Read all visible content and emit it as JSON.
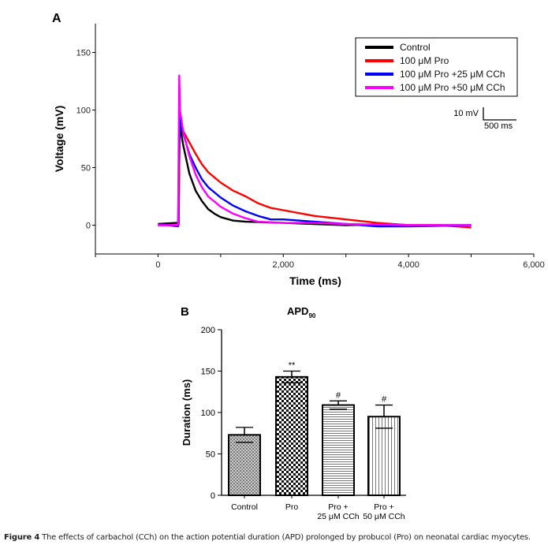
{
  "caption": {
    "label": "Figure 4",
    "text": "The effects of carbachol (CCh) on the action potential duration (APD) prolonged by probucol (Pro) on neonatal cardiac myocytes."
  },
  "chart_data": [
    {
      "panel": "A",
      "type": "line",
      "xlabel": "Time (ms)",
      "ylabel": "Voltage (mV)",
      "xlim": [
        -1000,
        6000
      ],
      "ylim": [
        -25,
        175
      ],
      "xticks": [
        0,
        2000,
        4000,
        6000
      ],
      "xtick_labels": [
        "0",
        "2,000",
        "4,000",
        "6,000"
      ],
      "yticks": [
        0,
        50,
        100,
        150
      ],
      "ytick_labels": [
        "0",
        "50",
        "100",
        "150"
      ],
      "grid": false,
      "legend": "top-right",
      "scale_bar": {
        "voltage_label": "10 mV",
        "time_label": "500 ms"
      },
      "series": [
        {
          "name": "Control",
          "color": "#000000",
          "points": [
            [
              0,
              1
            ],
            [
              300,
              2
            ],
            [
              330,
              2
            ],
            [
              345,
              88
            ],
            [
              400,
              70
            ],
            [
              500,
              45
            ],
            [
              600,
              30
            ],
            [
              700,
              21
            ],
            [
              800,
              14
            ],
            [
              900,
              10
            ],
            [
              1000,
              7
            ],
            [
              1200,
              4
            ],
            [
              1400,
              3
            ],
            [
              2000,
              2
            ],
            [
              2500,
              1
            ],
            [
              3000,
              0
            ],
            [
              3700,
              1
            ],
            [
              4000,
              0
            ],
            [
              5000,
              0
            ]
          ]
        },
        {
          "name": "100 μM Pro",
          "color": "#ff0000",
          "points": [
            [
              0,
              0
            ],
            [
              330,
              0
            ],
            [
              345,
              92
            ],
            [
              400,
              82
            ],
            [
              500,
              72
            ],
            [
              600,
              62
            ],
            [
              700,
              53
            ],
            [
              800,
              46
            ],
            [
              1000,
              37
            ],
            [
              1200,
              30
            ],
            [
              1400,
              25
            ],
            [
              1600,
              19
            ],
            [
              1800,
              15
            ],
            [
              2000,
              13
            ],
            [
              2500,
              8
            ],
            [
              3000,
              5
            ],
            [
              3500,
              2
            ],
            [
              4000,
              0
            ],
            [
              4500,
              0
            ],
            [
              5000,
              -2
            ]
          ]
        },
        {
          "name": "100 μM Pro +25 μM CCh",
          "color": "#0000ff",
          "points": [
            [
              0,
              1
            ],
            [
              320,
              -1
            ],
            [
              345,
              95
            ],
            [
              400,
              80
            ],
            [
              500,
              62
            ],
            [
              600,
              50
            ],
            [
              700,
              40
            ],
            [
              800,
              33
            ],
            [
              1000,
              24
            ],
            [
              1200,
              17
            ],
            [
              1400,
              12
            ],
            [
              1600,
              8
            ],
            [
              1800,
              5
            ],
            [
              2000,
              5
            ],
            [
              2500,
              3
            ],
            [
              3000,
              1
            ],
            [
              3500,
              -1
            ],
            [
              4000,
              -1
            ],
            [
              5000,
              0
            ]
          ]
        },
        {
          "name": "100 μM Pro +50 μM CCh",
          "color": "#ff00ff",
          "points": [
            [
              0,
              0
            ],
            [
              320,
              0
            ],
            [
              338,
              130
            ],
            [
              350,
              100
            ],
            [
              400,
              82
            ],
            [
              500,
              60
            ],
            [
              600,
              44
            ],
            [
              700,
              33
            ],
            [
              800,
              25
            ],
            [
              1000,
              16
            ],
            [
              1200,
              10
            ],
            [
              1400,
              6
            ],
            [
              1600,
              3
            ],
            [
              2000,
              2
            ],
            [
              2500,
              2
            ],
            [
              3000,
              1
            ],
            [
              4000,
              0
            ],
            [
              5000,
              0
            ]
          ]
        }
      ]
    },
    {
      "panel": "B",
      "type": "bar",
      "title": "APD",
      "title_subscript": "90",
      "ylabel": "Duration (ms)",
      "ylim": [
        0,
        200
      ],
      "yticks": [
        0,
        50,
        100,
        150,
        200
      ],
      "categories": [
        [
          "Control"
        ],
        [
          "Pro"
        ],
        [
          "Pro +",
          "25 μM CCh"
        ],
        [
          "Pro +",
          "50 μM CCh"
        ]
      ],
      "values": [
        73,
        143,
        109,
        95
      ],
      "errors": [
        9,
        7,
        5,
        14
      ],
      "annotations": [
        "",
        "**",
        "#",
        "#"
      ],
      "patterns": [
        "fine-gray-check",
        "checkerboard",
        "horizontal-lines",
        "vertical-lines"
      ]
    }
  ]
}
